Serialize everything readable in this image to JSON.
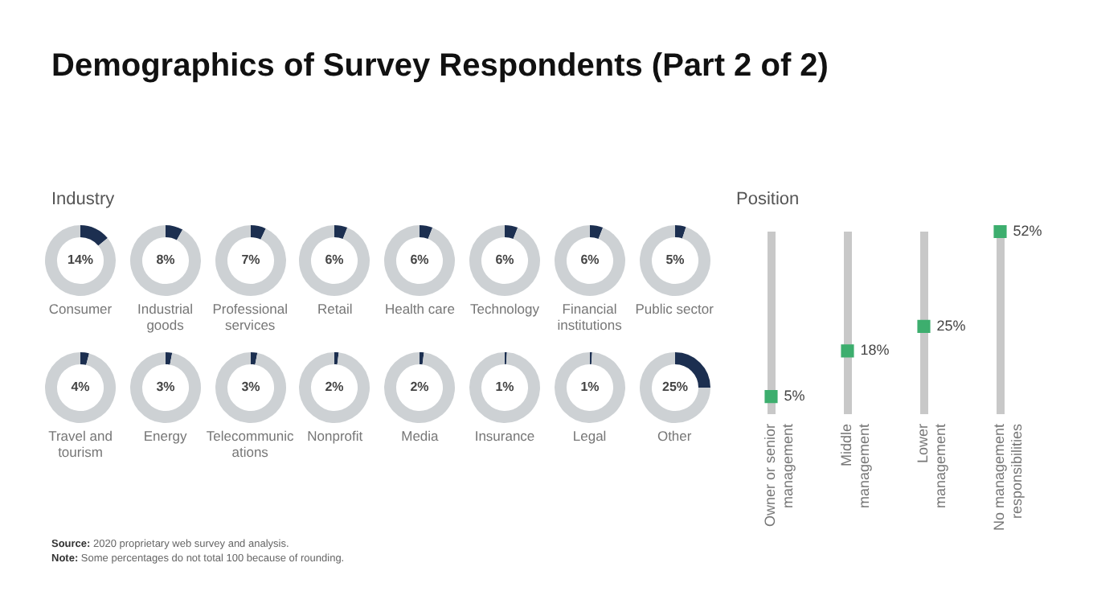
{
  "chart_data": [
    {
      "type": "other",
      "title": "Demographics of Survey Respondents (Part 2 of 2)",
      "subtitle": "Industry",
      "annotations": [
        "Source: 2020 proprietary web survey and analysis.",
        "Note: Some percentages do not total 100 because of rounding."
      ]
    },
    {
      "type": "donut",
      "title": "Consumer",
      "categories": [
        null,
        null
      ],
      "values": [
        14,
        86
      ],
      "colors": [
        "#1c2f50",
        "#cdd1d4"
      ],
      "value_labels": [
        "14%",
        null
      ]
    },
    {
      "type": "donut",
      "title": "Industrial goods",
      "categories": [
        null,
        null
      ],
      "values": [
        8,
        92
      ],
      "colors": [
        "#1c2f50",
        "#cdd1d4"
      ],
      "value_labels": [
        "8%",
        null
      ]
    },
    {
      "type": "donut",
      "title": "Professional services",
      "categories": [
        null,
        null
      ],
      "values": [
        7,
        93
      ],
      "colors": [
        "#1c2f50",
        "#cdd1d4"
      ],
      "value_labels": [
        "7%",
        null
      ]
    },
    {
      "type": "donut",
      "title": "Retail",
      "categories": [
        null,
        null
      ],
      "values": [
        6,
        94
      ],
      "colors": [
        "#1c2f50",
        "#cdd1d4"
      ],
      "value_labels": [
        "6%",
        null
      ]
    },
    {
      "type": "donut",
      "title": "Health care",
      "categories": [
        null,
        null
      ],
      "values": [
        6,
        94
      ],
      "colors": [
        "#1c2f50",
        "#cdd1d4"
      ],
      "value_labels": [
        "6%",
        null
      ]
    },
    {
      "type": "donut",
      "title": "Technology",
      "categories": [
        null,
        null
      ],
      "values": [
        6,
        94
      ],
      "colors": [
        "#1c2f50",
        "#cdd1d4"
      ],
      "value_labels": [
        "6%",
        null
      ]
    },
    {
      "type": "donut",
      "title": "Financial institutions",
      "categories": [
        null,
        null
      ],
      "values": [
        6,
        94
      ],
      "colors": [
        "#1c2f50",
        "#cdd1d4"
      ],
      "value_labels": [
        "6%",
        null
      ]
    },
    {
      "type": "donut",
      "title": "Public sector",
      "categories": [
        null,
        null
      ],
      "values": [
        5,
        95
      ],
      "colors": [
        "#1c2f50",
        "#cdd1d4"
      ],
      "value_labels": [
        "5%",
        null
      ]
    },
    {
      "type": "donut",
      "title": "Travel and tourism",
      "categories": [
        null,
        null
      ],
      "values": [
        4,
        96
      ],
      "colors": [
        "#1c2f50",
        "#cdd1d4"
      ],
      "value_labels": [
        "4%",
        null
      ]
    },
    {
      "type": "donut",
      "title": "Energy",
      "categories": [
        null,
        null
      ],
      "values": [
        3,
        97
      ],
      "colors": [
        "#1c2f50",
        "#cdd1d4"
      ],
      "value_labels": [
        "3%",
        null
      ]
    },
    {
      "type": "donut",
      "title": "Telecommunications",
      "categories": [
        null,
        null
      ],
      "values": [
        3,
        97
      ],
      "colors": [
        "#1c2f50",
        "#cdd1d4"
      ],
      "value_labels": [
        "3%",
        null
      ]
    },
    {
      "type": "donut",
      "title": "Nonprofit",
      "categories": [
        null,
        null
      ],
      "values": [
        2,
        98
      ],
      "colors": [
        "#1c2f50",
        "#cdd1d4"
      ],
      "value_labels": [
        "2%",
        null
      ]
    },
    {
      "type": "donut",
      "title": "Media",
      "categories": [
        null,
        null
      ],
      "values": [
        2,
        98
      ],
      "colors": [
        "#1c2f50",
        "#cdd1d4"
      ],
      "value_labels": [
        "2%",
        null
      ]
    },
    {
      "type": "donut",
      "title": "Insurance",
      "categories": [
        null,
        null
      ],
      "values": [
        1,
        99
      ],
      "colors": [
        "#1c2f50",
        "#cdd1d4"
      ],
      "value_labels": [
        "1%",
        null
      ]
    },
    {
      "type": "donut",
      "title": "Legal",
      "categories": [
        null,
        null
      ],
      "values": [
        1,
        99
      ],
      "colors": [
        "#1c2f50",
        "#cdd1d4"
      ],
      "value_labels": [
        "1%",
        null
      ]
    },
    {
      "type": "donut",
      "title": "Other",
      "categories": [
        null,
        null
      ],
      "values": [
        25,
        75
      ],
      "colors": [
        "#1c2f50",
        "#cdd1d4"
      ],
      "value_labels": [
        "25%",
        null
      ]
    },
    {
      "type": "scatter",
      "title": "Position",
      "categories": [
        "Owner or senior management",
        "Middle management",
        "Lower management",
        "No management responsibilities"
      ],
      "values": [
        5,
        18,
        25,
        52
      ],
      "color": "#3dae6e",
      "marker": "square",
      "grid": "x",
      "tick_labels": "x",
      "value_labels": [
        "5%",
        "18%",
        "25%",
        "52%"
      ]
    }
  ]
}
